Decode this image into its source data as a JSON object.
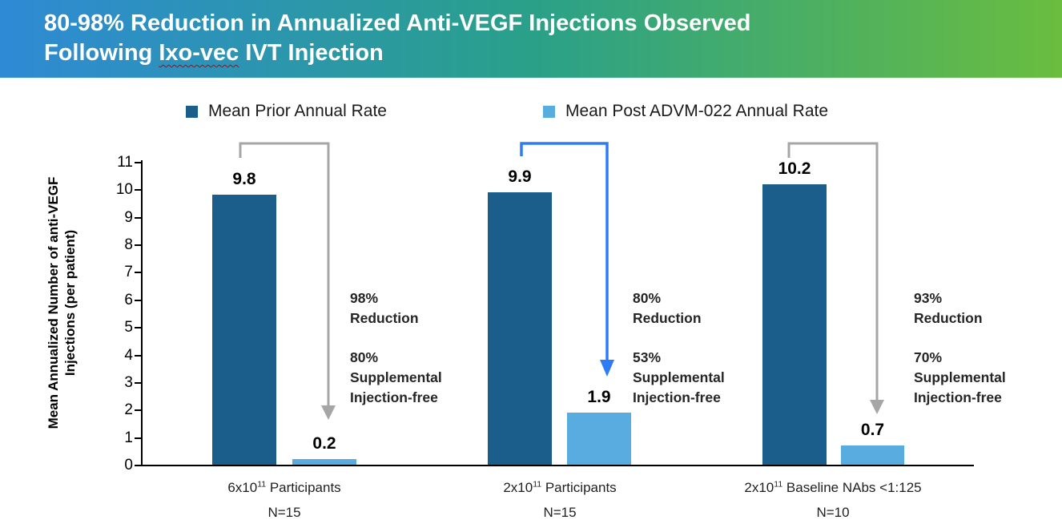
{
  "header": {
    "title_line1": "80-98% Reduction in Annualized Anti-VEGF Injections Observed",
    "title_line2_before": "Following ",
    "title_line2_word": "Ixo-vec",
    "title_line2_after": " IVT Injection"
  },
  "colors": {
    "header_start": "#2e8ad5",
    "header_mid": "#2aa089",
    "header_end": "#6abd3f",
    "bar_prior": "#1b5e8c",
    "bar_post": "#58ace0",
    "arrow_gray": "#a6a6a6",
    "arrow_blue": "#2e7bf6",
    "axis": "#000000",
    "text_dark": "#262626"
  },
  "legend": {
    "prior_label": "Mean Prior Annual Rate",
    "post_label": "Mean Post ADVM-022 Annual Rate"
  },
  "chart_data": {
    "type": "bar",
    "title": "80-98% Reduction in Annualized Anti-VEGF Injections Observed Following Ixo-vec IVT Injection",
    "ylabel_line1": "Mean Annualized Number of anti-VEGF",
    "ylabel_line2": "Injections (per patient)",
    "ylim": [
      0,
      11
    ],
    "yticks": [
      11,
      10,
      9,
      8,
      7,
      6,
      5,
      4,
      3,
      2,
      1,
      0
    ],
    "grid": false,
    "legend_position": "top",
    "categories": [
      "6x10¹¹ Participants",
      "2x10¹¹ Participants",
      "2x10¹¹ Baseline NAbs <1:125"
    ],
    "series": [
      {
        "name": "Mean Prior Annual Rate",
        "values": [
          9.8,
          9.9,
          10.2
        ]
      },
      {
        "name": "Mean Post ADVM-022 Annual Rate",
        "values": [
          0.2,
          1.9,
          0.7
        ]
      }
    ],
    "groups": [
      {
        "cat_base": "6x10",
        "cat_sup": "11",
        "cat_rest": " Participants",
        "n": "N=15",
        "prior": 9.8,
        "post": 0.2,
        "reduction_line1": "98%",
        "reduction_line2": "Reduction",
        "supp_line1": "80%",
        "supp_line2": "Supplemental",
        "supp_line3": "Injection-free",
        "arrow_color": "gray"
      },
      {
        "cat_base": "2x10",
        "cat_sup": "11",
        "cat_rest": " Participants",
        "n": "N=15",
        "prior": 9.9,
        "post": 1.9,
        "reduction_line1": "80%",
        "reduction_line2": "Reduction",
        "supp_line1": "53%",
        "supp_line2": "Supplemental",
        "supp_line3": "Injection-free",
        "arrow_color": "blue"
      },
      {
        "cat_base": "2x10",
        "cat_sup": "11",
        "cat_rest": " Baseline NAbs <1:125",
        "n": "N=10",
        "prior": 10.2,
        "post": 0.7,
        "reduction_line1": "93%",
        "reduction_line2": "Reduction",
        "supp_line1": "70%",
        "supp_line2": "Supplemental",
        "supp_line3": "Injection-free",
        "arrow_color": "gray"
      }
    ]
  }
}
